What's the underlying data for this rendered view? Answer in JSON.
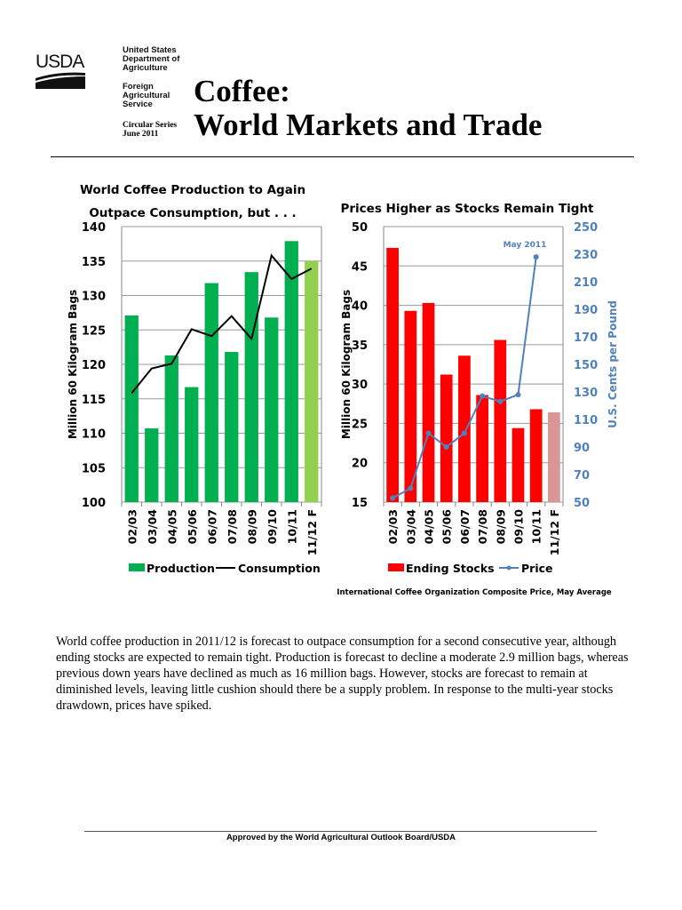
{
  "header": {
    "logo": "USDA",
    "agency": [
      "United States",
      "Department of",
      "Agriculture"
    ],
    "service": [
      "Foreign",
      "Agricultural",
      "Service"
    ],
    "series": "Circular Series",
    "date": "June 2011",
    "title_line1": "Coffee:",
    "title_line2": "World Markets and Trade"
  },
  "body_text": "World coffee production in 2011/12 is forecast to outpace consumption for a second consecutive year, although ending stocks are expected to remain tight.  Production is forecast to decline a moderate 2.9 million bags, whereas previous down years have declined as much as 16 million bags.  However, stocks are forecast to remain at diminished levels, leaving little cushion should there be a supply problem.  In response to the multi-year stocks drawdown, prices have spiked.",
  "footer": "Approved by the World Agricultural Outlook Board/USDA",
  "chart_data": [
    {
      "type": "bar",
      "title": "World Coffee Production to Again Outpace Consumption, but . . .",
      "title_lines": [
        "World Coffee Production to Again",
        "Outpace Consumption, but . . ."
      ],
      "categories": [
        "02/03",
        "03/04",
        "04/05",
        "05/06",
        "06/07",
        "07/08",
        "08/09",
        "09/10",
        "10/11",
        "11/12 F"
      ],
      "ylabel": "Million 60 Kilogram Bags",
      "ylim": [
        100,
        140
      ],
      "yticks": [
        100,
        105,
        110,
        115,
        120,
        125,
        130,
        135,
        140
      ],
      "grid": true,
      "legend": "bottom",
      "series": [
        {
          "name": "Production",
          "type": "bar",
          "color": "#00b050",
          "forecast_color": "#92d050",
          "values": [
            127.1,
            110.7,
            121.3,
            116.7,
            131.8,
            121.8,
            133.4,
            126.8,
            137.9,
            135.0
          ]
        },
        {
          "name": "Consumption",
          "type": "line",
          "color": "#000000",
          "values": [
            115.8,
            119.4,
            120.1,
            125.1,
            124.1,
            127.0,
            123.7,
            135.8,
            132.4,
            133.9
          ]
        }
      ]
    },
    {
      "type": "bar",
      "title": "Prices Higher as Stocks Remain Tight",
      "categories": [
        "02/03",
        "03/04",
        "04/05",
        "05/06",
        "06/07",
        "07/08",
        "08/09",
        "09/10",
        "10/11",
        "11/12 F"
      ],
      "ylabel": "Million 60 Kilogram Bags",
      "ylim": [
        15,
        50
      ],
      "yticks": [
        15,
        20,
        25,
        30,
        35,
        40,
        45,
        50
      ],
      "y2label": "U.S. Cents per Pound",
      "y2lim": [
        50,
        250
      ],
      "y2ticks": [
        50,
        70,
        90,
        110,
        130,
        150,
        170,
        190,
        210,
        230,
        250
      ],
      "grid": true,
      "legend": "bottom",
      "annotation": "May 2011",
      "note": "International Coffee Organization Composite Price, May Average",
      "series": [
        {
          "name": "Ending Stocks",
          "type": "bar",
          "color": "#ff0000",
          "forecast_color": "#d99694",
          "values": [
            47.3,
            39.3,
            40.3,
            31.2,
            33.6,
            28.6,
            35.6,
            24.4,
            26.8,
            26.4
          ]
        },
        {
          "name": "Price",
          "type": "line",
          "axis": "right",
          "color": "#4f81bd",
          "values": [
            53,
            60,
            100,
            90,
            100,
            127,
            123,
            128,
            228,
            null
          ]
        }
      ]
    }
  ]
}
